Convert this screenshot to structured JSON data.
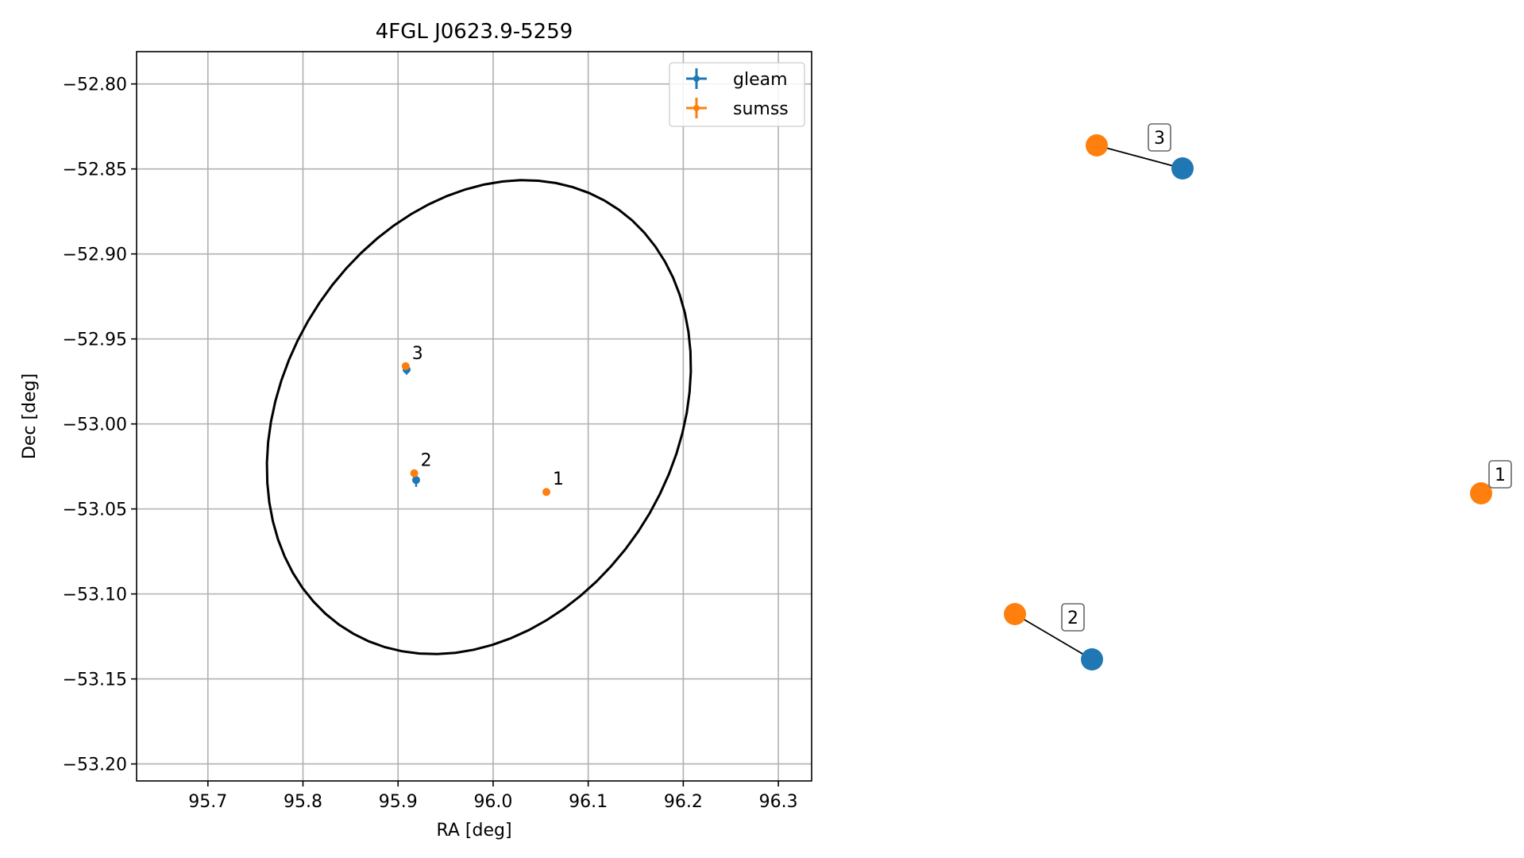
{
  "chart_data": [
    {
      "type": "scatter",
      "title": "4FGL J0623.9-5259",
      "xlabel": "RA [deg]",
      "ylabel": "Dec [deg]",
      "xlim": [
        95.625,
        96.335
      ],
      "ylim": [
        -53.21,
        -52.781
      ],
      "xticks": [
        "95.7",
        "95.8",
        "95.9",
        "96.0",
        "96.1",
        "96.2",
        "96.3"
      ],
      "xtick_values": [
        95.7,
        95.8,
        95.9,
        96.0,
        96.1,
        96.2,
        96.3
      ],
      "yticks": [
        "−52.80",
        "−52.85",
        "−52.90",
        "−52.95",
        "−53.00",
        "−53.05",
        "−53.10",
        "−53.15",
        "−53.20"
      ],
      "ytick_values": [
        -52.8,
        -52.85,
        -52.9,
        -52.95,
        -53.0,
        -53.05,
        -53.1,
        -53.15,
        -53.2
      ],
      "grid": true,
      "legend_position": "top-right",
      "series": [
        {
          "name": "gleam",
          "color": "#1f77b4",
          "points": [
            {
              "x": 95.909,
              "y": -52.968,
              "x_err": 0.003,
              "y_err": 0.003
            },
            {
              "x": 95.919,
              "y": -53.033,
              "x_err": 0.003,
              "y_err": 0.004
            }
          ]
        },
        {
          "name": "sumss",
          "color": "#ff7f0e",
          "points": [
            {
              "x": 95.908,
              "y": -52.966,
              "x_err": 0.001,
              "y_err": 0.0
            },
            {
              "x": 95.917,
              "y": -53.029,
              "x_err": 0.001,
              "y_err": 0.0
            },
            {
              "x": 96.056,
              "y": -53.04,
              "x_err": 0.001,
              "y_err": 0.0
            }
          ]
        }
      ],
      "annotations": [
        {
          "text": "1",
          "x": 96.056,
          "y": -53.04
        },
        {
          "text": "2",
          "x": 95.917,
          "y": -53.029
        },
        {
          "text": "3",
          "x": 95.908,
          "y": -52.966
        }
      ],
      "ellipse": {
        "center_ra": 95.985,
        "center_dec": -52.996,
        "semi_major": 0.151,
        "semi_minor": 0.121,
        "tilt_deg": 50,
        "color": "#000000"
      }
    },
    {
      "type": "network",
      "nodes": [
        {
          "label": "3",
          "colors": [
            "#ff7f0e",
            "#1f77b4"
          ]
        },
        {
          "label": "2",
          "colors": [
            "#ff7f0e",
            "#1f77b4"
          ]
        },
        {
          "label": "1",
          "colors": [
            "#ff7f0e"
          ]
        }
      ]
    }
  ]
}
